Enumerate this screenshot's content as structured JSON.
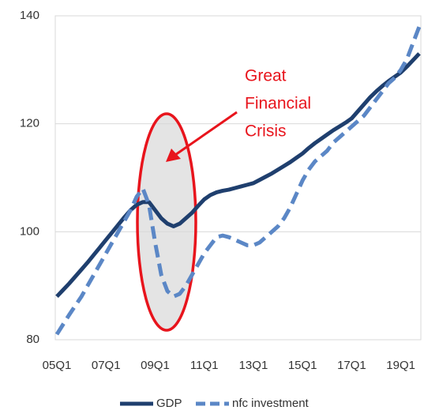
{
  "chart_data": {
    "type": "line",
    "annotation": [
      "Great",
      "Financial",
      "Crisis"
    ],
    "categories": [
      "05Q1",
      null,
      null,
      null,
      null,
      null,
      null,
      null,
      "07Q1",
      null,
      null,
      null,
      null,
      null,
      null,
      null,
      "09Q1",
      null,
      null,
      null,
      null,
      null,
      null,
      null,
      "11Q1",
      null,
      null,
      null,
      null,
      null,
      null,
      null,
      "13Q1",
      null,
      null,
      null,
      null,
      null,
      null,
      null,
      "15Q1",
      null,
      null,
      null,
      null,
      null,
      null,
      null,
      "17Q1",
      null,
      null,
      null,
      null,
      null,
      null,
      null,
      "19Q1",
      null,
      null,
      null
    ],
    "series": [
      {
        "name": "GDP",
        "color": "#1f3f6e",
        "dash": false,
        "values": [
          88,
          89.2,
          90.4,
          91.7,
          93,
          94.3,
          95.7,
          97.1,
          98.5,
          99.9,
          101.3,
          102.7,
          104,
          105,
          105.5,
          105.5,
          104,
          102.5,
          101.5,
          101,
          101.5,
          102.5,
          103.5,
          104.8,
          106,
          106.8,
          107.3,
          107.6,
          107.8,
          108.1,
          108.4,
          108.7,
          109,
          109.6,
          110.2,
          110.8,
          111.5,
          112.2,
          112.9,
          113.7,
          114.5,
          115.5,
          116.4,
          117.2,
          118,
          118.8,
          119.5,
          120.2,
          121,
          122.3,
          123.6,
          124.9,
          126,
          127,
          127.9,
          128.7,
          129.5,
          130.6,
          131.8,
          133
        ]
      },
      {
        "name": "nfc investment",
        "color": "#5b87c6",
        "dash": true,
        "values": [
          81,
          82.8,
          84.6,
          86.3,
          88,
          90,
          92,
          94,
          96,
          98,
          100,
          102,
          104,
          106.5,
          108,
          105,
          98,
          92,
          89,
          88,
          88.5,
          90,
          92,
          94,
          96,
          97.5,
          99,
          99.3,
          99,
          98.5,
          98,
          97.5,
          97.5,
          98,
          99,
          100,
          101,
          102.5,
          104.5,
          107,
          109.5,
          111.5,
          113,
          114,
          115,
          116.5,
          117.5,
          118.5,
          119.5,
          120.5,
          121.5,
          123,
          124.5,
          126,
          127.5,
          128.5,
          130,
          132,
          135,
          138
        ]
      }
    ],
    "ylim": [
      80,
      140
    ],
    "yticks": [
      80,
      100,
      120,
      140
    ],
    "grid": true
  }
}
